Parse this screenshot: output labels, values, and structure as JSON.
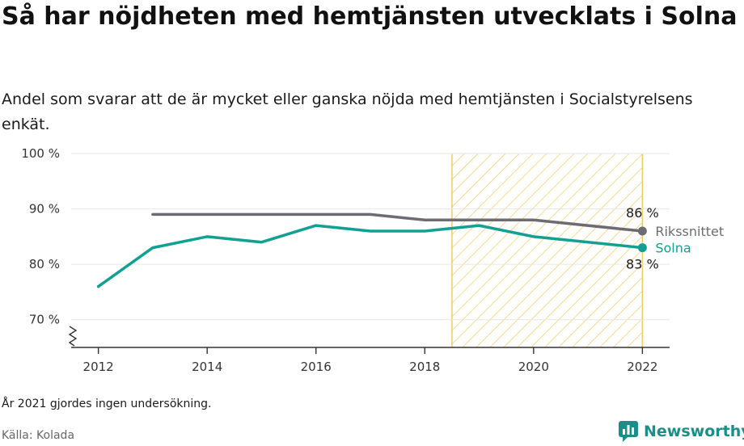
{
  "title": "Så har nöjdheten med hemtjänsten utvecklats i Solna",
  "subtitle": "Andel som svarar att de är mycket eller ganska nöjda med hemtjänsten i Socialstyrelsens enkät.",
  "footnote": "År 2021 gjordes ingen undersökning.",
  "source": "Källa: Kolada",
  "logo_text": "Newsworthy",
  "colors": {
    "riket": "#6d6c72",
    "solna": "#12a093",
    "highlight": "#f4c95d",
    "grid": "#e6e6e6",
    "axis": "#333333"
  },
  "chart_data": {
    "type": "line",
    "title": "Så har nöjdheten med hemtjänsten utvecklats i Solna",
    "xlabel": "",
    "ylabel": "",
    "xlim": [
      2011.5,
      2022.5
    ],
    "ylim": [
      65,
      100
    ],
    "y_ticks": [
      70,
      80,
      90,
      100
    ],
    "y_tick_labels": [
      "70 %",
      "80 %",
      "90 %",
      "100 %"
    ],
    "x_ticks": [
      2012,
      2014,
      2016,
      2018,
      2020,
      2022
    ],
    "x_tick_labels": [
      "2012",
      "2014",
      "2016",
      "2018",
      "2020",
      "2022"
    ],
    "grid": true,
    "highlight_range": [
      2018.5,
      2022
    ],
    "series": [
      {
        "name": "Rikssnittet",
        "color": "#6d6c72",
        "x": [
          2013,
          2014,
          2015,
          2016,
          2017,
          2018,
          2019,
          2020,
          2022
        ],
        "values": [
          89,
          89,
          89,
          89,
          89,
          88,
          88,
          88,
          86
        ],
        "end_label": "86 %"
      },
      {
        "name": "Solna",
        "color": "#12a093",
        "x": [
          2012,
          2013,
          2014,
          2015,
          2016,
          2017,
          2018,
          2019,
          2020,
          2022
        ],
        "values": [
          76,
          83,
          85,
          84,
          87,
          86,
          86,
          87,
          85,
          83
        ],
        "end_label": "83 %"
      }
    ]
  }
}
